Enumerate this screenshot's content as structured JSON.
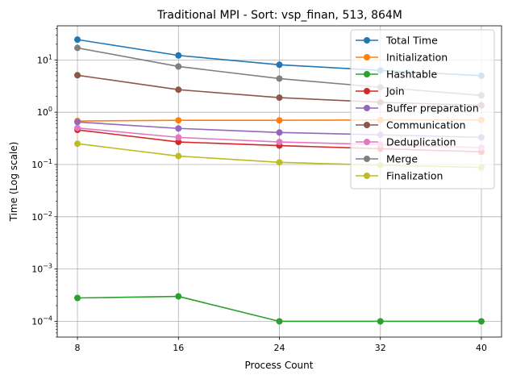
{
  "chart_data": {
    "type": "line",
    "title": "Traditional MPI - Sort: vsp_finan, 513, 864M",
    "xlabel": "Process Count",
    "ylabel": "Time (Log scale)",
    "x": [
      8,
      16,
      24,
      32,
      40
    ],
    "xticks": [
      "8",
      "16",
      "24",
      "32",
      "40"
    ],
    "yscale": "log",
    "ylim": [
      5e-05,
      45
    ],
    "yticks": [
      {
        "value": 0.0001,
        "base": "10",
        "exp": "−4"
      },
      {
        "value": 0.001,
        "base": "10",
        "exp": "−3"
      },
      {
        "value": 0.01,
        "base": "10",
        "exp": "−2"
      },
      {
        "value": 0.1,
        "base": "10",
        "exp": "−1"
      },
      {
        "value": 1,
        "base": "10",
        "exp": "0"
      },
      {
        "value": 10,
        "base": "10",
        "exp": "1"
      }
    ],
    "grid": true,
    "legend_position": "top-right",
    "series": [
      {
        "name": "Total Time",
        "color": "#1f77b4",
        "values": [
          24.5,
          12.2,
          8.1,
          6.3,
          5.0
        ]
      },
      {
        "name": "Initialization",
        "color": "#ff7f0e",
        "values": [
          0.68,
          0.7,
          0.7,
          0.71,
          0.71
        ]
      },
      {
        "name": "Hashtable",
        "color": "#2ca02c",
        "values": [
          0.00028,
          0.0003,
          0.0001,
          0.0001,
          0.0001
        ]
      },
      {
        "name": "Join",
        "color": "#d62728",
        "values": [
          0.46,
          0.27,
          0.23,
          0.2,
          0.175
        ]
      },
      {
        "name": "Buffer preparation",
        "color": "#9467bd",
        "values": [
          0.65,
          0.49,
          0.41,
          0.37,
          0.33
        ]
      },
      {
        "name": "Communication",
        "color": "#8c564b",
        "values": [
          5.1,
          2.7,
          1.9,
          1.55,
          1.35
        ]
      },
      {
        "name": "Deduplication",
        "color": "#e377c2",
        "values": [
          0.5,
          0.33,
          0.27,
          0.24,
          0.21
        ]
      },
      {
        "name": "Merge",
        "color": "#7f7f7f",
        "values": [
          17.0,
          7.5,
          4.4,
          3.0,
          2.1
        ]
      },
      {
        "name": "Finalization",
        "color": "#bcbd22",
        "values": [
          0.25,
          0.145,
          0.11,
          0.097,
          0.088
        ]
      }
    ]
  }
}
